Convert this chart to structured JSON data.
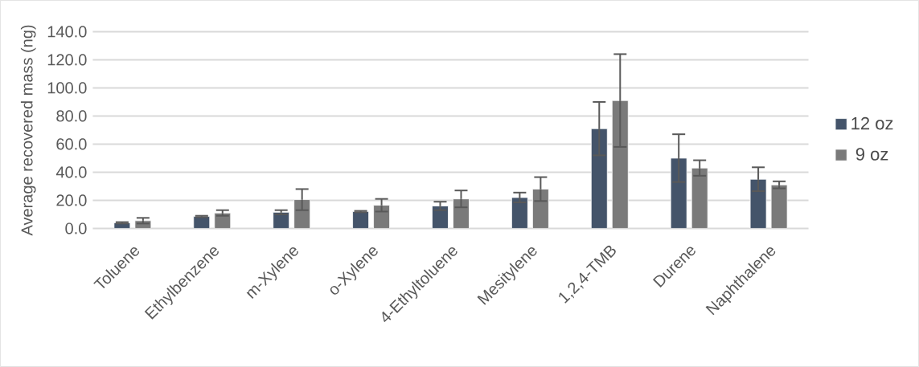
{
  "chart_data": {
    "type": "bar",
    "ylabel": "Average recovered mass (ng)",
    "categories": [
      "Toluene",
      "Ethylbenzene",
      "m-Xylene",
      "o-Xylene",
      "4-Ethyltoluene",
      "Mesitylene",
      "1,2,4-TMB",
      "Durene",
      "Naphthalene"
    ],
    "series": [
      {
        "name": "12 oz",
        "color": "#44546a",
        "values": [
          4,
          8.5,
          11.5,
          12,
          16,
          22,
          71,
          50,
          35
        ],
        "errors": [
          0.5,
          0.5,
          1.5,
          0.5,
          3,
          3.5,
          19,
          17,
          8.5
        ]
      },
      {
        "name": "9 oz",
        "color": "#7a7a7a",
        "values": [
          5.5,
          11,
          20.5,
          16.5,
          21,
          28,
          91,
          43,
          31
        ],
        "errors": [
          2,
          2,
          7.5,
          4.5,
          6,
          8.5,
          33,
          5.5,
          2.5
        ]
      }
    ],
    "ylim": [
      0,
      140
    ],
    "yticks": [
      {
        "value": 0,
        "label": "0.0"
      },
      {
        "value": 20,
        "label": "20.0"
      },
      {
        "value": 40,
        "label": "40.0"
      },
      {
        "value": 60,
        "label": "60.0"
      },
      {
        "value": 80,
        "label": "80.0"
      },
      {
        "value": 100,
        "label": "100.0"
      },
      {
        "value": 120,
        "label": "120.0"
      },
      {
        "value": 140,
        "label": "140.0"
      }
    ],
    "grid": "y",
    "legend": "right"
  }
}
